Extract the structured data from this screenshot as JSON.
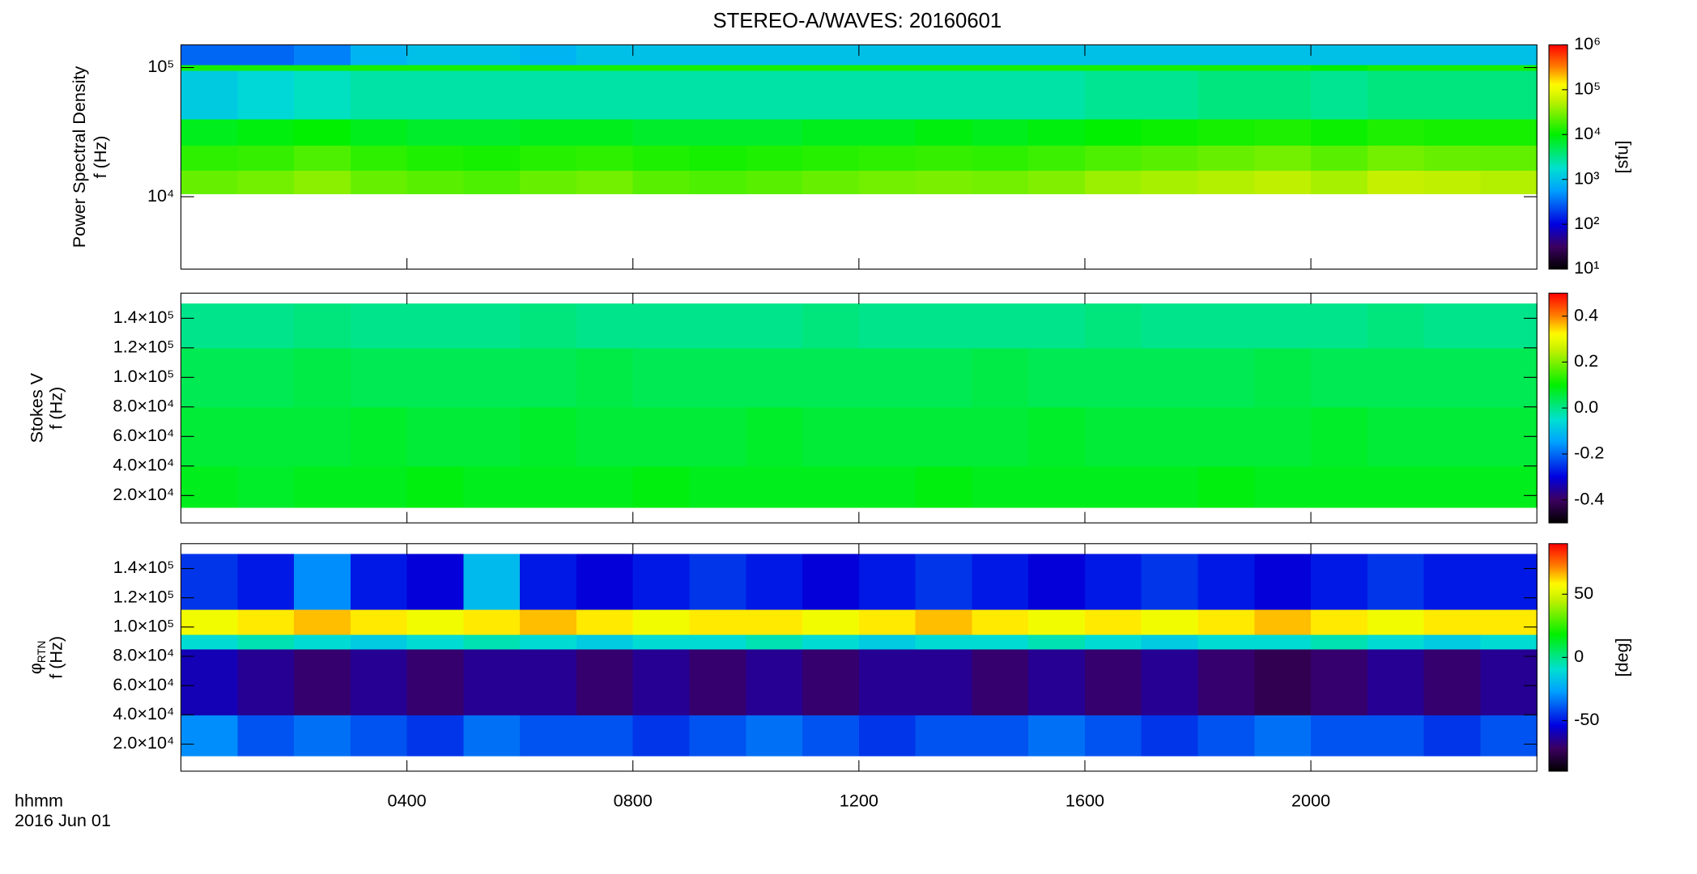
{
  "chart_data": [
    {
      "type": "heatmap",
      "title": "STEREO-A/WAVES: 20160601",
      "colormap": "rainbow",
      "ylabel": [
        "Power Spectral Density",
        "f (Hz)"
      ],
      "ylog": true,
      "ylim": [
        2750,
        150000
      ],
      "yticks": [
        {
          "value": 10000,
          "label": "10⁴"
        },
        {
          "value": 100000,
          "label": "10⁵"
        }
      ],
      "xlim": [
        0,
        24
      ],
      "xticks": [
        4,
        8,
        12,
        16,
        20
      ],
      "x_edges": [
        0,
        1,
        2,
        3,
        4,
        5,
        6,
        7,
        8,
        9,
        10,
        11,
        12,
        13,
        14,
        15,
        16,
        17,
        18,
        19,
        20,
        21,
        22,
        23,
        24
      ],
      "y_edges": [
        10500,
        16000,
        25000,
        40000,
        95000,
        105000,
        150000
      ],
      "z": [
        [
          25000,
          28000,
          35000,
          25000,
          22000,
          20000,
          25000,
          28000,
          22000,
          20000,
          22000,
          25000,
          28000,
          30000,
          28000,
          32000,
          40000,
          45000,
          50000,
          55000,
          45000,
          60000,
          55000,
          50000
        ],
        [
          15000,
          16000,
          20000,
          15000,
          13000,
          12000,
          14000,
          15000,
          13000,
          12000,
          13000,
          14000,
          15000,
          16000,
          15000,
          17000,
          20000,
          22000,
          25000,
          28000,
          22000,
          28000,
          25000,
          24000
        ],
        [
          8000,
          9000,
          10000,
          8000,
          7000,
          7000,
          8000,
          8000,
          7000,
          7000,
          7000,
          8000,
          8000,
          9000,
          8000,
          9000,
          10000,
          11000,
          12000,
          13000,
          11000,
          13000,
          12000,
          12000
        ],
        [
          1200,
          1500,
          2000,
          2500,
          2500,
          2500,
          2500,
          2500,
          2500,
          2500,
          2500,
          2500,
          2500,
          2500,
          2500,
          2500,
          3000,
          3000,
          3500,
          3500,
          3000,
          3500,
          3500,
          3500
        ],
        [
          12000,
          12000,
          12000,
          12000,
          12000,
          12000,
          12000,
          12000,
          12000,
          12000,
          12000,
          12000,
          12000,
          12000,
          12000,
          12000,
          12000,
          12000,
          12000,
          12000,
          10000,
          12000,
          12000,
          12000
        ],
        [
          300,
          300,
          400,
          800,
          1000,
          1000,
          800,
          1000,
          1000,
          1000,
          1000,
          1000,
          1000,
          1000,
          1000,
          1000,
          1000,
          1000,
          1000,
          1000,
          1000,
          1000,
          1000,
          1000
        ]
      ],
      "colorbar": {
        "log": true,
        "lim": [
          10,
          1000000
        ],
        "label": "[sfu]",
        "ticks": [
          {
            "value": 10,
            "label": "10¹"
          },
          {
            "value": 100,
            "label": "10²"
          },
          {
            "value": 1000,
            "label": "10³"
          },
          {
            "value": 10000,
            "label": "10⁴"
          },
          {
            "value": 100000,
            "label": "10⁵"
          },
          {
            "value": 1000000,
            "label": "10⁶"
          }
        ]
      }
    },
    {
      "type": "heatmap",
      "colormap": "rainbow",
      "ylabel": [
        "Stokes V",
        "f (Hz)"
      ],
      "ylim": [
        1500,
        157000
      ],
      "yticks": [
        {
          "value": 20000,
          "label": "2.0×10⁴"
        },
        {
          "value": 40000,
          "label": "4.0×10⁴"
        },
        {
          "value": 60000,
          "label": "6.0×10⁴"
        },
        {
          "value": 80000,
          "label": "8.0×10⁴"
        },
        {
          "value": 100000,
          "label": "1.0×10⁵"
        },
        {
          "value": 120000,
          "label": "1.2×10⁵"
        },
        {
          "value": 140000,
          "label": "1.4×10⁵"
        }
      ],
      "xlim": [
        0,
        24
      ],
      "xticks": [
        4,
        8,
        12,
        16,
        20
      ],
      "x_edges": [
        0,
        1,
        2,
        3,
        4,
        5,
        6,
        7,
        8,
        9,
        10,
        11,
        12,
        13,
        14,
        15,
        16,
        17,
        18,
        19,
        20,
        21,
        22,
        23,
        24
      ],
      "y_edges": [
        12000,
        40000,
        80000,
        120000,
        150000
      ],
      "z": [
        [
          0.08,
          0.07,
          0.08,
          0.08,
          0.09,
          0.08,
          0.08,
          0.08,
          0.09,
          0.08,
          0.08,
          0.08,
          0.08,
          0.09,
          0.08,
          0.08,
          0.08,
          0.08,
          0.09,
          0.08,
          0.08,
          0.08,
          0.08,
          0.08
        ],
        [
          0.06,
          0.06,
          0.06,
          0.07,
          0.06,
          0.06,
          0.07,
          0.06,
          0.06,
          0.06,
          0.07,
          0.06,
          0.06,
          0.06,
          0.06,
          0.07,
          0.06,
          0.06,
          0.06,
          0.06,
          0.07,
          0.06,
          0.06,
          0.06
        ],
        [
          0.04,
          0.04,
          0.05,
          0.04,
          0.04,
          0.04,
          0.04,
          0.05,
          0.04,
          0.04,
          0.04,
          0.04,
          0.04,
          0.04,
          0.05,
          0.04,
          0.04,
          0.04,
          0.04,
          0.05,
          0.04,
          0.04,
          0.04,
          0.04
        ],
        [
          0.0,
          0.0,
          0.01,
          0.0,
          0.0,
          0.0,
          0.01,
          0.0,
          0.0,
          0.0,
          0.0,
          0.01,
          0.0,
          0.0,
          0.0,
          0.0,
          0.01,
          0.0,
          0.0,
          0.0,
          0.0,
          0.01,
          0.0,
          0.0
        ]
      ],
      "colorbar": {
        "log": false,
        "lim": [
          -0.5,
          0.5
        ],
        "ticks": [
          {
            "value": -0.4,
            "label": "-0.4"
          },
          -0.2,
          {
            "value": 0,
            "label": "0.0"
          },
          0.2,
          0.4
        ]
      }
    },
    {
      "type": "heatmap",
      "colormap": "rainbow",
      "ylabel": [
        "φ",
        "f (Hz)"
      ],
      "ylabel_sub": "RTN",
      "ylim": [
        1500,
        157000
      ],
      "yticks": [
        {
          "value": 20000,
          "label": "2.0×10⁴"
        },
        {
          "value": 40000,
          "label": "4.0×10⁴"
        },
        {
          "value": 60000,
          "label": "6.0×10⁴"
        },
        {
          "value": 80000,
          "label": "8.0×10⁴"
        },
        {
          "value": 100000,
          "label": "1.0×10⁵"
        },
        {
          "value": 120000,
          "label": "1.2×10⁵"
        },
        {
          "value": 140000,
          "label": "1.4×10⁵"
        }
      ],
      "xlim": [
        0,
        24
      ],
      "xticks": [
        {
          "value": 4,
          "label": "0400"
        },
        {
          "value": 8,
          "label": "0800"
        },
        {
          "value": 12,
          "label": "1200"
        },
        {
          "value": 16,
          "label": "1600"
        },
        {
          "value": 20,
          "label": "2000"
        }
      ],
      "xlabel": "hhmm",
      "date_label": "2016 Jun 01",
      "x_edges": [
        0,
        1,
        2,
        3,
        4,
        5,
        6,
        7,
        8,
        9,
        10,
        11,
        12,
        13,
        14,
        15,
        16,
        17,
        18,
        19,
        20,
        21,
        22,
        23,
        24
      ],
      "y_edges": [
        12000,
        40000,
        85000,
        95000,
        112000,
        150000
      ],
      "z": [
        [
          -30,
          -40,
          -35,
          -40,
          -45,
          -35,
          -40,
          -40,
          -45,
          -40,
          -35,
          -40,
          -45,
          -40,
          -40,
          -35,
          -40,
          -45,
          -40,
          -35,
          -40,
          -40,
          -45,
          -40
        ],
        [
          -60,
          -65,
          -70,
          -65,
          -70,
          -65,
          -65,
          -70,
          -65,
          -70,
          -65,
          -70,
          -65,
          -65,
          -70,
          -65,
          -70,
          -65,
          -70,
          -75,
          -70,
          -65,
          -70,
          -65
        ],
        [
          -10,
          -5,
          -10,
          -15,
          -10,
          -5,
          -10,
          -15,
          -10,
          -10,
          -5,
          -10,
          -15,
          -10,
          -10,
          -5,
          -10,
          -15,
          -10,
          -10,
          -5,
          -10,
          -15,
          -10
        ],
        [
          55,
          60,
          65,
          60,
          55,
          60,
          65,
          60,
          55,
          60,
          60,
          55,
          60,
          65,
          60,
          55,
          60,
          55,
          60,
          65,
          60,
          55,
          60,
          60
        ],
        [
          -45,
          -50,
          -30,
          -50,
          -55,
          -20,
          -50,
          -55,
          -50,
          -45,
          -50,
          -55,
          -50,
          -45,
          -50,
          -55,
          -50,
          -45,
          -50,
          -55,
          -50,
          -45,
          -50,
          -50
        ]
      ],
      "colorbar": {
        "log": false,
        "lim": [
          -90,
          90
        ],
        "label": "[deg]",
        "ticks": [
          -50,
          0,
          50
        ]
      }
    }
  ]
}
